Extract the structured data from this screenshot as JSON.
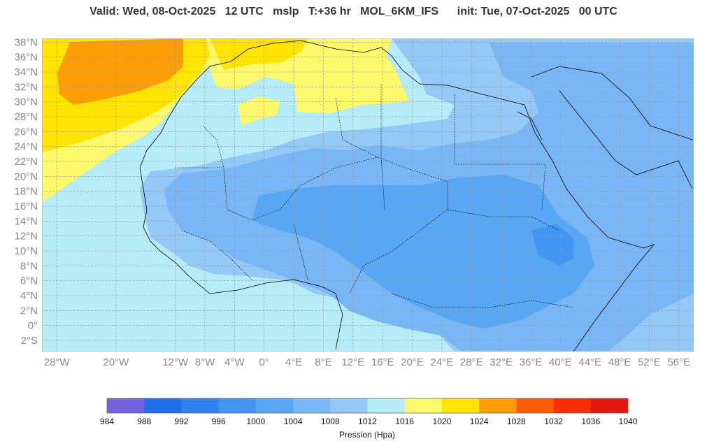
{
  "title": "Valid: Wed, 08-Oct-2025   12 UTC   mslp   T:+36 hr   MOL_6KM_IFS      init: Tue, 07-Oct-2025   00 UTC",
  "map": {
    "lon_range": [
      -30,
      58
    ],
    "lat_range": [
      -3.5,
      38.5
    ],
    "lat_labels": [
      {
        "lat": 38,
        "text": "38°N"
      },
      {
        "lat": 36,
        "text": "36°N"
      },
      {
        "lat": 34,
        "text": "34°N"
      },
      {
        "lat": 32,
        "text": "32°N"
      },
      {
        "lat": 30,
        "text": "30°N"
      },
      {
        "lat": 28,
        "text": "28°N"
      },
      {
        "lat": 26,
        "text": "26°N"
      },
      {
        "lat": 24,
        "text": "24°N"
      },
      {
        "lat": 22,
        "text": "22°N"
      },
      {
        "lat": 20,
        "text": "20°N"
      },
      {
        "lat": 18,
        "text": "18°N"
      },
      {
        "lat": 16,
        "text": "16°N"
      },
      {
        "lat": 14,
        "text": "14°N"
      },
      {
        "lat": 12,
        "text": "12°N"
      },
      {
        "lat": 10,
        "text": "10°N"
      },
      {
        "lat": 8,
        "text": "8°N"
      },
      {
        "lat": 6,
        "text": "6°N"
      },
      {
        "lat": 4,
        "text": "4°N"
      },
      {
        "lat": 2,
        "text": "2°N"
      },
      {
        "lat": 0,
        "text": "0°"
      },
      {
        "lat": -2,
        "text": "2°S"
      }
    ],
    "lon_labels": [
      {
        "lon": -28,
        "text": "28°W"
      },
      {
        "lon": -20,
        "text": "20°W"
      },
      {
        "lon": -12,
        "text": "12°W"
      },
      {
        "lon": -8,
        "text": "8°W"
      },
      {
        "lon": -4,
        "text": "4°W"
      },
      {
        "lon": 0,
        "text": "0°"
      },
      {
        "lon": 4,
        "text": "4°E"
      },
      {
        "lon": 8,
        "text": "8°E"
      },
      {
        "lon": 12,
        "text": "12°E"
      },
      {
        "lon": 16,
        "text": "16°E"
      },
      {
        "lon": 20,
        "text": "20°E"
      },
      {
        "lon": 24,
        "text": "24°E"
      },
      {
        "lon": 28,
        "text": "28°E"
      },
      {
        "lon": 32,
        "text": "32°E"
      },
      {
        "lon": 36,
        "text": "36°E"
      },
      {
        "lon": 40,
        "text": "40°E"
      },
      {
        "lon": 44,
        "text": "44°E"
      },
      {
        "lon": 48,
        "text": "48°E"
      },
      {
        "lon": 52,
        "text": "52°E"
      },
      {
        "lon": 56,
        "text": "56°E"
      }
    ],
    "grid": true
  },
  "colorbar": {
    "levels": [
      "984",
      "988",
      "992",
      "996",
      "1000",
      "1004",
      "1008",
      "1012",
      "1016",
      "1020",
      "1024",
      "1028",
      "1032",
      "1036",
      "1040"
    ],
    "colors": [
      "#7262dd",
      "#1f6fe8",
      "#2f82f0",
      "#4296f2",
      "#57a7f4",
      "#79b6f6",
      "#94c8f7",
      "#b5ecf8",
      "#fdf86c",
      "#fee303",
      "#fd9d05",
      "#fd5c04",
      "#fb2d07",
      "#e2180f"
    ],
    "title": "Pression (Hpa)"
  },
  "colors": {
    "ocean_fill": "#b5ecf8",
    "land_1008": "#94c8f7",
    "land_1004": "#79b6f6",
    "land_1000": "#57a7f4",
    "high_1016": "#fdf86c",
    "high_1020": "#fee303",
    "high_1024": "#fd9d05",
    "border": "#000000",
    "grid": "#999999"
  }
}
